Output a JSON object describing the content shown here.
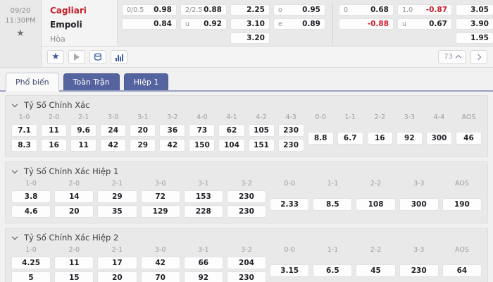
{
  "match": {
    "date": "09/20",
    "time": "11:30PM",
    "home": "Cagliari",
    "away": "Empoli",
    "draw_label": "Hòa",
    "market_count": "73"
  },
  "top_odds": {
    "rows": [
      [
        {
          "label": "0/0.5",
          "value": "0.98"
        },
        {
          "label": "2/2.5",
          "value": "0.88"
        },
        {
          "value": "2.25"
        },
        {
          "label": "o",
          "value": "0.95"
        },
        {
          "label": "0",
          "value": "0.68"
        },
        {
          "label": "1.0",
          "value": "-0.87"
        },
        {
          "value": "3.05"
        }
      ],
      [
        {
          "value": "0.84"
        },
        {
          "label": "u",
          "value": "0.92"
        },
        {
          "value": "3.10"
        },
        {
          "label": "e",
          "value": "0.89"
        },
        {
          "value": "-0.88"
        },
        {
          "label": "u",
          "value": "0.67"
        },
        {
          "value": "3.90"
        }
      ],
      [
        null,
        null,
        {
          "value": "3.20"
        },
        null,
        null,
        null,
        {
          "value": "1.95"
        }
      ]
    ]
  },
  "tabs": [
    {
      "label": "Phổ biến",
      "active": true
    },
    {
      "label": "Toàn Trận",
      "active": false
    },
    {
      "label": "Hiệp 1",
      "active": false
    }
  ],
  "sections": [
    {
      "title": "Tỷ Số Chính Xác",
      "score_cols": [
        [
          "1-0",
          "7.1",
          "8.3"
        ],
        [
          "2-0",
          "11",
          "16"
        ],
        [
          "2-1",
          "9.6",
          "11"
        ],
        [
          "3-0",
          "24",
          "42"
        ],
        [
          "3-1",
          "20",
          "29"
        ],
        [
          "3-2",
          "36",
          "42"
        ],
        [
          "4-0",
          "73",
          "150"
        ],
        [
          "4-1",
          "62",
          "104"
        ],
        [
          "4-2",
          "105",
          "151"
        ],
        [
          "4-3",
          "230",
          "230"
        ]
      ],
      "draw_cols": [
        [
          "0-0",
          "8.8"
        ],
        [
          "1-1",
          "6.7"
        ],
        [
          "2-2",
          "16"
        ],
        [
          "3-3",
          "92"
        ],
        [
          "4-4",
          "300"
        ],
        [
          "AOS",
          "46"
        ]
      ]
    },
    {
      "title": "Tỷ Số Chính Xác Hiệp 1",
      "score_cols": [
        [
          "1-0",
          "3.8",
          "4.6"
        ],
        [
          "2-0",
          "14",
          "20"
        ],
        [
          "2-1",
          "29",
          "35"
        ],
        [
          "3-0",
          "72",
          "129"
        ],
        [
          "3-1",
          "153",
          "228"
        ],
        [
          "3-2",
          "230",
          "230"
        ]
      ],
      "draw_cols": [
        [
          "0-0",
          "2.33"
        ],
        [
          "1-1",
          "8.5"
        ],
        [
          "2-2",
          "108"
        ],
        [
          "3-3",
          "300"
        ],
        [
          "AOS",
          "190"
        ]
      ]
    },
    {
      "title": "Tỷ Số Chính Xác Hiệp 2",
      "score_cols": [
        [
          "1-0",
          "4.25",
          "5"
        ],
        [
          "2-0",
          "11",
          "15"
        ],
        [
          "2-1",
          "17",
          "20"
        ],
        [
          "3-0",
          "42",
          "70"
        ],
        [
          "3-1",
          "66",
          "92"
        ],
        [
          "3-2",
          "204",
          "230"
        ]
      ],
      "draw_cols": [
        [
          "0-0",
          "3.15"
        ],
        [
          "1-1",
          "6.5"
        ],
        [
          "2-2",
          "45"
        ],
        [
          "3-3",
          "230"
        ],
        [
          "AOS",
          "64"
        ]
      ]
    }
  ],
  "colors": {
    "accent_blue": "#55639e",
    "negative_red": "#cb1f2b",
    "home_red": "#c01e28"
  }
}
